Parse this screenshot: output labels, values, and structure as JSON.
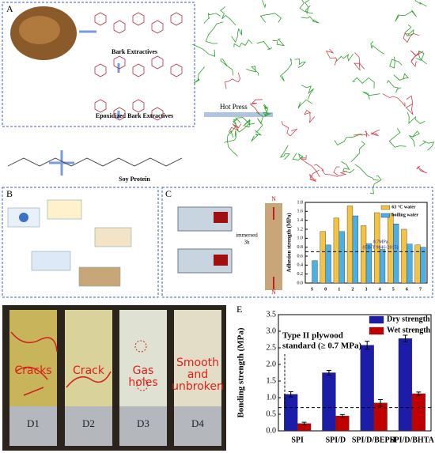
{
  "panels": {
    "a": "A",
    "b": "B",
    "c": "C",
    "d": "D",
    "e": "E"
  },
  "panel_a": {
    "bark_extractives": "Bark Extractives",
    "epoxidized": "Epoxidized Bark Extractives",
    "soy_protein": "Soy Protein",
    "hot_press": "Hot Press"
  },
  "panel_c": {
    "immersed": "immersed",
    "duration": "3h",
    "pole_top": "N",
    "pole_bottom": "N"
  },
  "panel_d": {
    "labels": [
      "Cracks",
      "Crack",
      "Gas holes",
      "Smooth and unbroken"
    ],
    "samples": [
      "D1",
      "D2",
      "D3",
      "D4"
    ]
  },
  "chart_data": [
    {
      "type": "bar",
      "ylabel": "Adhesion strength (MPa)",
      "categories": [
        "S",
        "0",
        "1",
        "2",
        "3",
        "4",
        "5",
        "6",
        "7"
      ],
      "series": [
        {
          "name": "63 °C water",
          "color": "#f5c342",
          "values": [
            null,
            1.15,
            1.45,
            1.72,
            1.28,
            1.57,
            1.55,
            1.2,
            0.85
          ]
        },
        {
          "name": "boiling water",
          "color": "#4ab0e6",
          "values": [
            0.5,
            0.85,
            1.15,
            1.5,
            0.88,
            0.75,
            1.32,
            0.87,
            0.8
          ]
        }
      ],
      "ylim": [
        0,
        1.8
      ],
      "yticks": [
        {
          "value": 0,
          "label": "0.0"
        },
        {
          "value": 0.2,
          "label": "0.2"
        },
        {
          "value": 0.4,
          "label": "0.4"
        },
        {
          "value": 0.6,
          "label": "0.6"
        },
        {
          "value": 0.8,
          "label": "0.8"
        },
        {
          "value": 1.0,
          "label": "1.0"
        },
        {
          "value": 1.2,
          "label": "1.2"
        },
        {
          "value": 1.4,
          "label": "1.4"
        },
        {
          "value": 1.6,
          "label": "1.6"
        },
        {
          "value": 1.8,
          "label": "1.8"
        }
      ],
      "reference_line": 0.7,
      "annotation": [
        "0.7MPa",
        "(GB/T 9846-2015)"
      ],
      "legend": "top-right"
    },
    {
      "type": "bar",
      "ylabel": "Bonding strength (MPa)",
      "categories": [
        "SPI",
        "SPI/D",
        "SPI/D/BEPH",
        "SPI/D/BHTA"
      ],
      "series": [
        {
          "name": "Dry strength",
          "color": "#1c1ca8",
          "values": [
            1.1,
            1.75,
            2.58,
            2.78
          ],
          "errors": [
            0.08,
            0.07,
            0.12,
            0.1
          ]
        },
        {
          "name": "Wet strength",
          "color": "#c00000",
          "values": [
            0.22,
            0.45,
            0.84,
            1.12
          ],
          "errors": [
            0.04,
            0.04,
            0.1,
            0.05
          ]
        }
      ],
      "ylim": [
        0,
        3.5
      ],
      "yticks": [
        {
          "value": 0,
          "label": "0.0"
        },
        {
          "value": 0.5,
          "label": "0.5"
        },
        {
          "value": 1.0,
          "label": "1.0"
        },
        {
          "value": 1.5,
          "label": "1.5"
        },
        {
          "value": 2.0,
          "label": "2.0"
        },
        {
          "value": 2.5,
          "label": "2.5"
        },
        {
          "value": 3.0,
          "label": "3.0"
        },
        {
          "value": 3.5,
          "label": "3.5"
        }
      ],
      "reference_line": 0.7,
      "annotation": [
        "Type II plywood",
        "standard (≥ 0.7 MPa)"
      ],
      "legend": "top-right"
    }
  ]
}
